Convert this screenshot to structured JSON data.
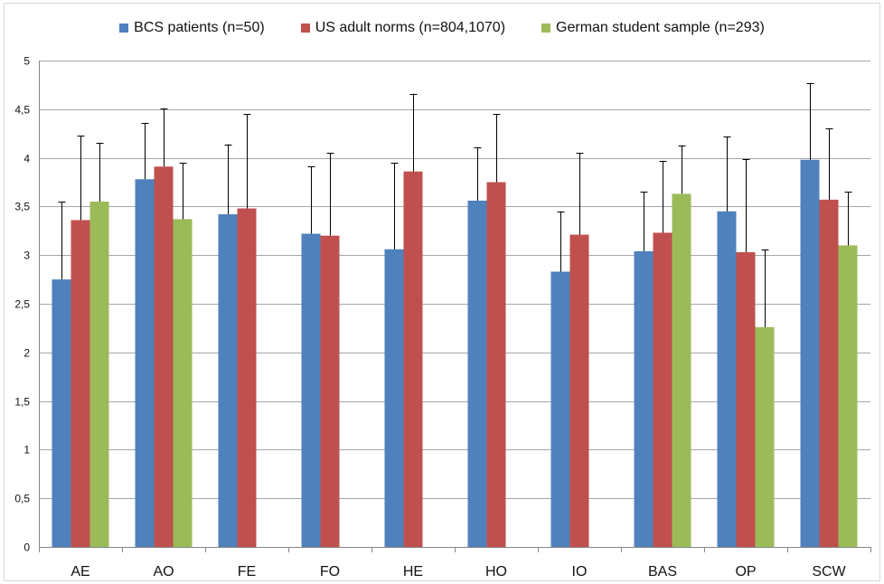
{
  "chart_data": {
    "type": "bar",
    "categories": [
      "AE",
      "AO",
      "FE",
      "FO",
      "HE",
      "HO",
      "IO",
      "BAS",
      "OP",
      "SCW"
    ],
    "series": [
      {
        "name": "BCS patients (n=50)",
        "color": "#4F81BD",
        "values": [
          2.75,
          3.78,
          3.42,
          3.22,
          3.06,
          3.56,
          2.83,
          3.04,
          3.45,
          3.98
        ],
        "error_upper": [
          3.55,
          4.36,
          4.14,
          3.91,
          3.95,
          4.11,
          3.45,
          3.65,
          4.22,
          4.77
        ]
      },
      {
        "name": "US adult norms (n=804,1070)",
        "color": "#C0504D",
        "values": [
          3.36,
          3.91,
          3.48,
          3.2,
          3.86,
          3.75,
          3.21,
          3.23,
          3.03,
          3.57
        ],
        "error_upper": [
          4.23,
          4.51,
          4.45,
          4.05,
          4.66,
          4.45,
          4.05,
          3.97,
          3.99,
          4.3
        ]
      },
      {
        "name": "German student sample (n=293)",
        "color": "#9BBB59",
        "values": [
          3.55,
          3.37,
          null,
          null,
          null,
          null,
          null,
          3.63,
          2.26,
          3.1
        ],
        "error_upper": [
          4.15,
          3.95,
          null,
          null,
          null,
          null,
          null,
          4.13,
          3.06,
          3.65
        ]
      }
    ],
    "ylim": [
      0,
      5
    ],
    "yticks": [
      "0",
      "0,5",
      "1",
      "1,5",
      "2",
      "2,5",
      "3",
      "3,5",
      "4",
      "4,5",
      "5"
    ],
    "grid": true,
    "legend_position": "top"
  }
}
